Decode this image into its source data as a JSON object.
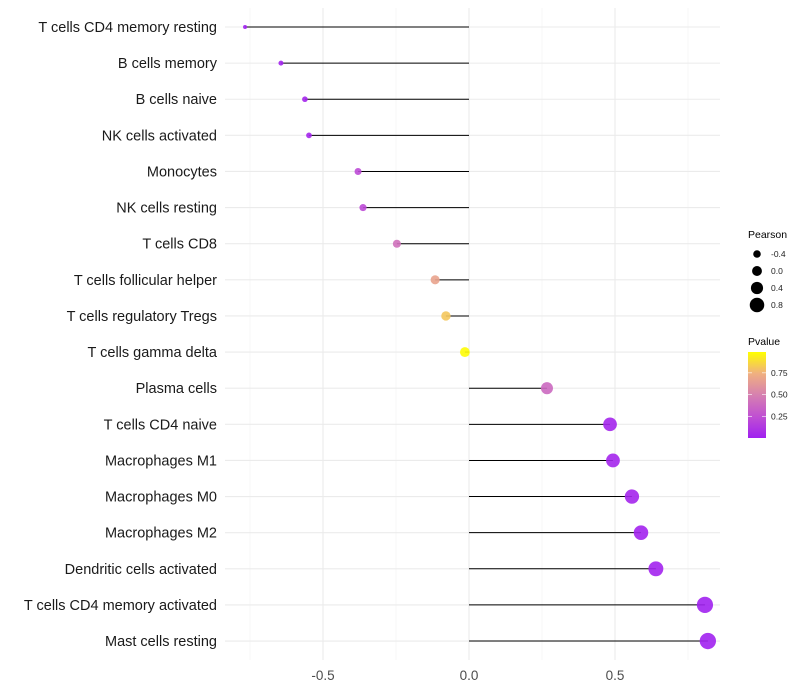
{
  "chart_data": {
    "type": "lollipop",
    "title": "",
    "xlabel": "",
    "ylabel": "",
    "xlim": [
      -0.84,
      0.87
    ],
    "xticks": [
      -0.5,
      0.0,
      0.5
    ],
    "xtick_labels": [
      "-0.5",
      "0.0",
      "0.5"
    ],
    "grid": true,
    "categories": [
      "T cells CD4 memory resting",
      "B cells memory",
      "B cells naive",
      "NK cells activated",
      "Monocytes",
      "NK cells resting",
      "T cells CD8",
      "T cells follicular helper",
      "T cells regulatory  Tregs ",
      "T cells gamma delta",
      "Plasma cells",
      "T cells CD4 naive",
      "Macrophages M1",
      "Macrophages M0",
      "Macrophages M2",
      "Dendritic cells activated",
      "T cells CD4 memory activated",
      "Mast cells resting"
    ],
    "pearson": [
      -0.767,
      -0.644,
      -0.562,
      -0.548,
      -0.38,
      -0.363,
      -0.247,
      -0.116,
      -0.079,
      -0.014,
      0.267,
      0.483,
      0.493,
      0.558,
      0.589,
      0.64,
      0.808,
      0.818
    ],
    "pvalue": [
      0.01,
      0.02,
      0.03,
      0.03,
      0.22,
      0.22,
      0.42,
      0.68,
      0.82,
      0.99,
      0.38,
      0.03,
      0.03,
      0.03,
      0.02,
      0.02,
      0.01,
      0.01
    ],
    "legend": {
      "size_title": "Pearson",
      "size_values": [
        -0.4,
        0.0,
        0.4,
        0.8
      ],
      "size_labels": [
        "-0.4",
        "0.0",
        "0.4",
        "0.8"
      ],
      "color_title": "Pvalue",
      "color_labels": [
        "0.75",
        "0.50",
        "0.25"
      ],
      "color_values": [
        0.75,
        0.5,
        0.25
      ],
      "color_low": "#A020F0",
      "color_high": "#FFFF00",
      "placement": "right"
    }
  }
}
